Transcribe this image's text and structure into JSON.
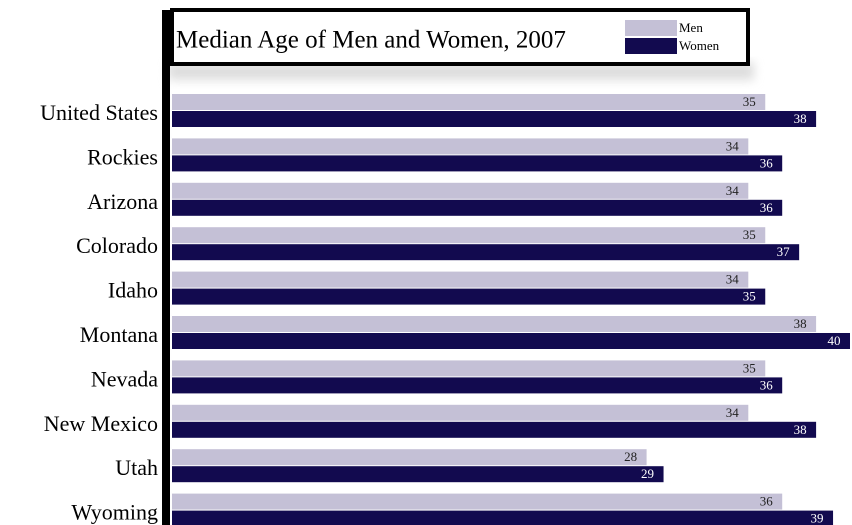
{
  "chart_data": {
    "type": "bar",
    "orientation": "horizontal",
    "title": "Median Age of Men and Women, 2007",
    "categories": [
      "United States",
      "Rockies",
      "Arizona",
      "Colorado",
      "Idaho",
      "Montana",
      "Nevada",
      "New Mexico",
      "Utah",
      "Wyoming"
    ],
    "series": [
      {
        "name": "Men",
        "color": "#c4c0d6",
        "values": [
          35,
          34,
          34,
          35,
          34,
          38,
          35,
          34,
          28,
          36
        ]
      },
      {
        "name": "Women",
        "color": "#120a4f",
        "values": [
          38,
          36,
          36,
          37,
          35,
          40,
          36,
          38,
          29,
          39
        ]
      }
    ]
  }
}
